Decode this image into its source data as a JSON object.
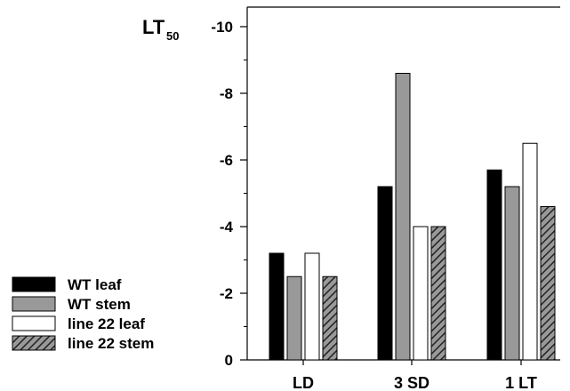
{
  "chart_data": {
    "type": "bar",
    "ylabel": "LT",
    "ylabel_subscript": "50",
    "categories": [
      "LD",
      "3 SD",
      "1 LT"
    ],
    "series": [
      {
        "name": "WT leaf",
        "values": [
          -3.2,
          -5.2,
          -5.7
        ],
        "color": "#000000",
        "pattern": "solid"
      },
      {
        "name": "WT stem",
        "values": [
          -2.5,
          -8.6,
          -5.2
        ],
        "color": "#999999",
        "pattern": "solid"
      },
      {
        "name": "line 22 leaf",
        "values": [
          -3.2,
          -4.0,
          -6.5
        ],
        "color": "#ffffff",
        "pattern": "solid"
      },
      {
        "name": "line  22 stem",
        "values": [
          -2.5,
          -4.0,
          -4.6
        ],
        "color": "#444444",
        "pattern": "hatch"
      }
    ],
    "ylim": [
      0,
      -10
    ],
    "yticks": [
      {
        "value": 0,
        "label": "0"
      },
      {
        "value": -2,
        "label": "-2"
      },
      {
        "value": -4,
        "label": "-4"
      },
      {
        "value": -6,
        "label": "-6"
      },
      {
        "value": -8,
        "label": "-8"
      },
      {
        "value": -10,
        "label": "-10"
      }
    ],
    "grid": false,
    "legend_position": "bottom-left"
  }
}
